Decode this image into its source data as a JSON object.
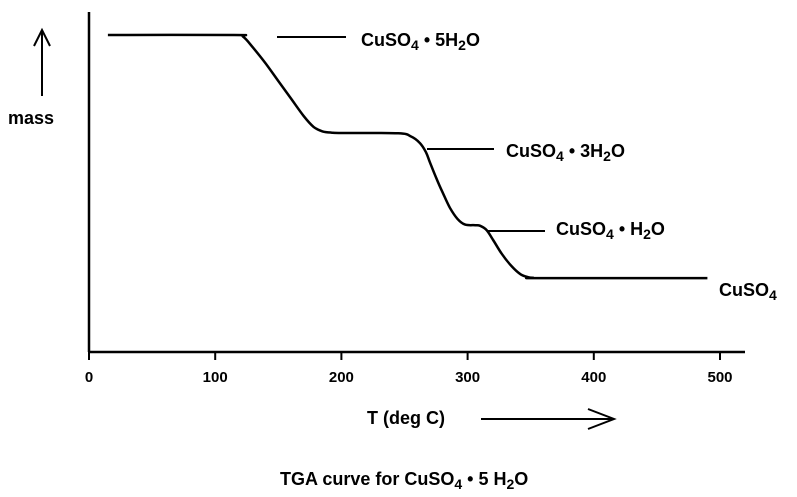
{
  "chart_data": {
    "type": "line",
    "title": "TGA curve for CuSO4 • 5 H2O",
    "title_parts": {
      "pre": "TGA curve for CuSO",
      "sub1": "4",
      "mid": " • 5 H",
      "sub2": "2",
      "post": "O"
    },
    "xlabel": "T (deg C)",
    "ylabel": "mass",
    "xlim": [
      0,
      510
    ],
    "ylim": [
      0,
      100
    ],
    "xticks": [
      0,
      100,
      200,
      300,
      400,
      500
    ],
    "y_tick_labels": false,
    "grid": false,
    "series": [
      {
        "x": [
          15,
          115,
          122,
          130,
          140,
          150,
          160,
          170,
          178,
          185,
          192,
          200,
          245,
          255,
          262,
          267,
          270,
          275,
          280,
          286,
          292,
          298,
          306,
          310,
          315,
          320,
          327,
          335,
          342,
          348,
          352,
          358,
          490
        ],
        "y": [
          100,
          100,
          99.5,
          96,
          91,
          85.5,
          80,
          74.5,
          71,
          69.6,
          69.2,
          69.1,
          69,
          68,
          66,
          63,
          60,
          55,
          50.5,
          45.5,
          42,
          40.2,
          40,
          39.8,
          38.5,
          35.5,
          31,
          27,
          24.5,
          23.6,
          23.4,
          23.3,
          23.3
        ],
        "color": "#000000"
      }
    ],
    "annotations": [
      {
        "label": "CuSO4 • 5H2O",
        "pre": "CuSO",
        "sub1": "4",
        "mid": " • 5H",
        "sub2": "2",
        "post": "O",
        "x": 150,
        "y": 100
      },
      {
        "label": "CuSO4 • 3H2O",
        "pre": "CuSO",
        "sub1": "4",
        "mid": " • 3H",
        "sub2": "2",
        "post": "O",
        "x": 268,
        "y": 69
      },
      {
        "label": "CuSO4 • H2O",
        "pre": "CuSO",
        "sub1": "4",
        "mid": " • H",
        "sub2": "2",
        "post": "O",
        "x": 313,
        "y": 40
      },
      {
        "label": "CuSO4",
        "pre": "CuSO",
        "sub1": "4",
        "mid": "",
        "sub2": "",
        "post": "",
        "x": null,
        "y": 23.3
      }
    ]
  }
}
